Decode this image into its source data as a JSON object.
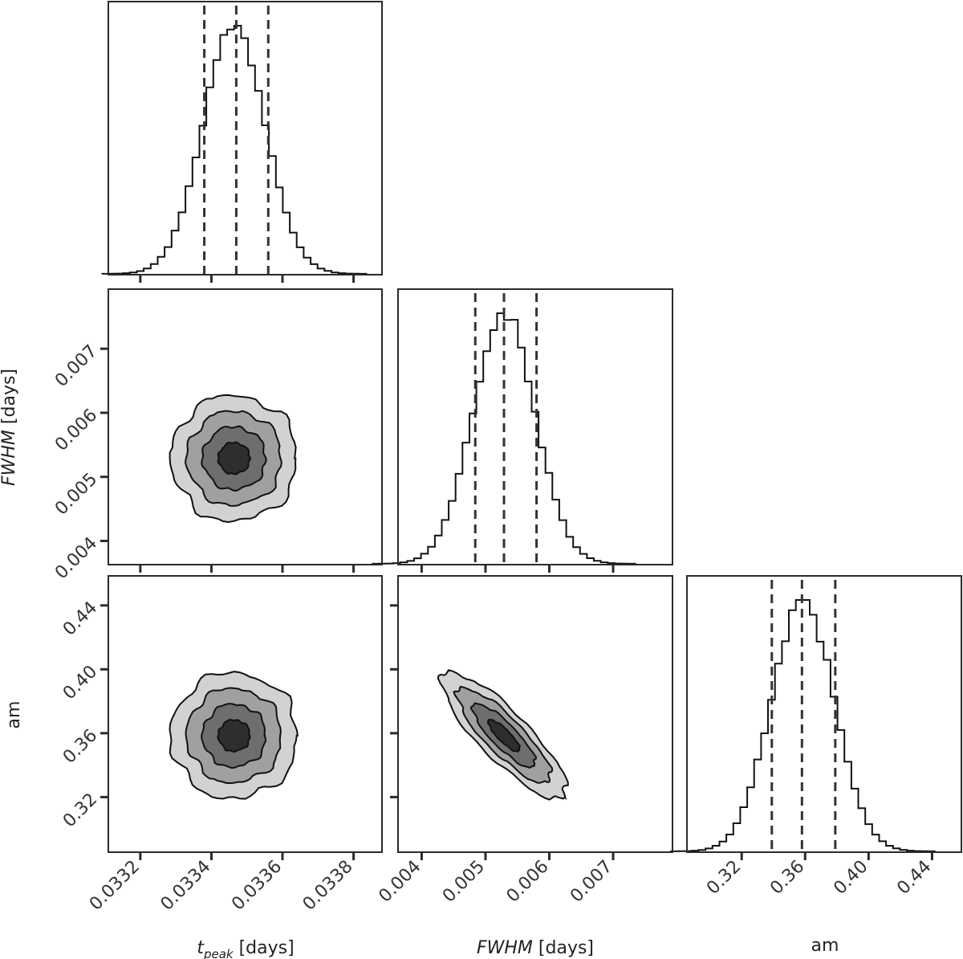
{
  "chart_data": {
    "type": "corner",
    "parameters": [
      {
        "key": "tpeak",
        "label_main": "t",
        "label_sub": "peak",
        "label_unit": " [days]",
        "ticks": [
          "0.0332",
          "0.0334",
          "0.0336",
          "0.0338"
        ],
        "range": [
          0.03311,
          0.03388
        ],
        "mean": 0.033464,
        "sigma": 8.85e-05,
        "quantiles": [
          0.03338,
          0.03347,
          0.03356
        ]
      },
      {
        "key": "fwhm",
        "label_main": "FWHM",
        "label_unit": " [days]",
        "ticks": [
          "0.004",
          "0.005",
          "0.006",
          "0.007"
        ],
        "range": [
          0.00363,
          0.00793
        ],
        "mean": 0.00529,
        "sigma": 0.00049,
        "quantiles": [
          0.00484,
          0.00529,
          0.0058
        ]
      },
      {
        "key": "am",
        "label_main": "am",
        "label_unit": "",
        "ticks": [
          "0.32",
          "0.36",
          "0.40",
          "0.44"
        ],
        "range": [
          0.2855,
          0.4585
        ],
        "mean": 0.3585,
        "sigma": 0.0198,
        "quantiles": [
          0.339,
          0.358,
          0.379
        ]
      }
    ],
    "correlations": {
      "tpeak-fwhm": 0.0,
      "tpeak-am": 0.0,
      "fwhm-am": -0.85
    },
    "contour_levels_sigma": [
      0.5,
      1.0,
      1.5,
      2.0
    ],
    "contour_fills": [
      "#2e2e2e",
      "#6e6e6e",
      "#a0a0a0",
      "#d2d2d2"
    ],
    "colors": {
      "line": "#111111",
      "frame": "#2b2b2b",
      "quantile": "#333333"
    }
  }
}
